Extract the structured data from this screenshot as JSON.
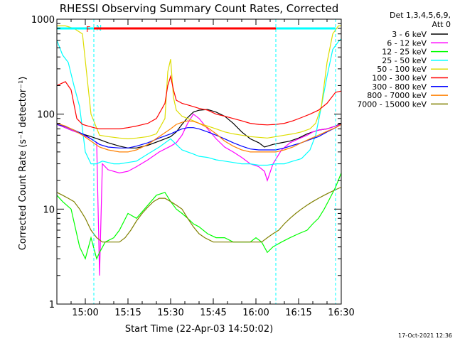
{
  "chart_data": {
    "type": "line",
    "title": "RHESSI Observing Summary Count Rates, Corrected",
    "xlabel": "Start Time (22-Apr-03 14:50:02)",
    "ylabel": "Corrected Count Rate (s⁻¹ detector⁻¹)",
    "x_start_minutes": 0,
    "x_end_minutes": 100,
    "xlim_minutes": [
      0,
      100
    ],
    "ylim": [
      1,
      1000
    ],
    "y_scale": "log",
    "x_ticks": [
      {
        "label": "15:00",
        "minute": 10
      },
      {
        "label": "15:15",
        "minute": 25
      },
      {
        "label": "15:30",
        "minute": 40
      },
      {
        "label": "15:45",
        "minute": 55
      },
      {
        "label": "16:00",
        "minute": 70
      },
      {
        "label": "16:15",
        "minute": 85
      },
      {
        "label": "16:30",
        "minute": 100
      }
    ],
    "y_ticks": [
      {
        "label": "1",
        "value": 1
      },
      {
        "label": "10",
        "value": 10
      },
      {
        "label": "100",
        "value": 100
      },
      {
        "label": "1000",
        "value": 1000
      }
    ],
    "legend_header": [
      "Det 1,3,4,5,6,9,",
      "Att 0"
    ],
    "legend_position": "right",
    "series": [
      {
        "name": "3 - 6 keV",
        "color": "#000000",
        "x": [
          0,
          2,
          5,
          8,
          12,
          15,
          18,
          22,
          25,
          28,
          32,
          36,
          40,
          42,
          44,
          46,
          48,
          50,
          53,
          56,
          59,
          62,
          65,
          68,
          71,
          73,
          76,
          79,
          82,
          85,
          88,
          90,
          92,
          95,
          98,
          100
        ],
        "y": [
          78,
          74,
          68,
          63,
          58,
          54,
          50,
          46,
          44,
          44,
          47,
          52,
          58,
          65,
          78,
          92,
          105,
          110,
          112,
          105,
          95,
          80,
          65,
          55,
          50,
          45,
          48,
          50,
          52,
          56,
          62,
          65,
          68,
          70,
          75,
          80
        ]
      },
      {
        "name": "6 - 12 keV",
        "color": "#ff00ff",
        "x": [
          0,
          2,
          5,
          8,
          12,
          14,
          15,
          16,
          18,
          22,
          25,
          28,
          32,
          36,
          40,
          42,
          44,
          46,
          48,
          50,
          53,
          56,
          59,
          62,
          65,
          68,
          71,
          73,
          74,
          76,
          79,
          82,
          85,
          88,
          90,
          92,
          95,
          98,
          100
        ],
        "y": [
          78,
          74,
          68,
          63,
          55,
          50,
          2,
          30,
          26,
          24,
          25,
          28,
          33,
          40,
          46,
          50,
          60,
          80,
          100,
          90,
          70,
          55,
          45,
          40,
          35,
          30,
          28,
          25,
          20,
          30,
          42,
          50,
          55,
          60,
          65,
          68,
          70,
          75,
          78
        ]
      },
      {
        "name": "12 - 25 keV",
        "color": "#00ff00",
        "x": [
          0,
          2,
          5,
          8,
          10,
          12,
          14,
          15,
          17,
          20,
          22,
          25,
          28,
          32,
          35,
          38,
          40,
          42,
          44,
          46,
          48,
          50,
          53,
          56,
          59,
          62,
          65,
          68,
          70,
          72,
          74,
          76,
          79,
          82,
          85,
          88,
          90,
          92,
          94,
          96,
          98,
          100
        ],
        "y": [
          14,
          12,
          10,
          4,
          3,
          5,
          3,
          3.5,
          4.5,
          5,
          6,
          9,
          8,
          11,
          14,
          15,
          12,
          10,
          9,
          8,
          7,
          6.5,
          5.5,
          5,
          5,
          4.5,
          4.5,
          4.5,
          5,
          4.5,
          3.5,
          4,
          4.5,
          5,
          5.5,
          6,
          7,
          8,
          10,
          13,
          17,
          24
        ]
      },
      {
        "name": "25 - 50 keV",
        "color": "#00ffff",
        "x": [
          0,
          2,
          4,
          6,
          8,
          10,
          12,
          14,
          16,
          18,
          20,
          22,
          25,
          28,
          32,
          36,
          40,
          42,
          44,
          46,
          48,
          50,
          53,
          56,
          59,
          62,
          65,
          68,
          71,
          74,
          77,
          80,
          83,
          86,
          89,
          91,
          93,
          95,
          97,
          99,
          100
        ],
        "y": [
          600,
          420,
          350,
          200,
          120,
          40,
          30,
          30,
          32,
          31,
          30,
          30,
          31,
          32,
          38,
          45,
          55,
          48,
          42,
          40,
          38,
          36,
          35,
          33,
          32,
          31,
          30,
          30,
          29,
          29,
          30,
          30,
          32,
          34,
          42,
          60,
          120,
          250,
          480,
          580,
          620
        ]
      },
      {
        "name": "50 - 100 keV",
        "color": "#dddd00",
        "x": [
          0,
          3,
          6,
          9,
          12,
          15,
          18,
          22,
          25,
          28,
          32,
          35,
          38,
          39,
          40,
          41,
          42,
          44,
          46,
          48,
          50,
          53,
          56,
          59,
          62,
          65,
          68,
          71,
          74,
          77,
          80,
          83,
          86,
          89,
          91,
          93,
          95,
          97,
          99,
          100
        ],
        "y": [
          850,
          850,
          800,
          700,
          100,
          60,
          58,
          56,
          55,
          56,
          58,
          62,
          90,
          280,
          380,
          150,
          110,
          95,
          90,
          85,
          80,
          75,
          70,
          65,
          62,
          60,
          58,
          57,
          56,
          58,
          60,
          62,
          65,
          70,
          80,
          120,
          350,
          700,
          850,
          850
        ]
      },
      {
        "name": "100 - 300 keV",
        "color": "#ff0000",
        "x": [
          0,
          3,
          5,
          7,
          9,
          11,
          13,
          15,
          18,
          22,
          25,
          28,
          32,
          35,
          38,
          39,
          40,
          41,
          42,
          44,
          46,
          48,
          50,
          53,
          56,
          59,
          62,
          65,
          68,
          71,
          74,
          77,
          80,
          83,
          86,
          89,
          92,
          95,
          98,
          100
        ],
        "y": [
          200,
          220,
          180,
          90,
          78,
          75,
          72,
          70,
          70,
          70,
          72,
          75,
          80,
          90,
          130,
          200,
          250,
          180,
          140,
          130,
          125,
          120,
          115,
          110,
          100,
          95,
          90,
          85,
          80,
          78,
          77,
          78,
          80,
          85,
          92,
          100,
          110,
          130,
          170,
          175
        ]
      },
      {
        "name": "300 - 800 keV",
        "color": "#0000ff",
        "x": [
          0,
          3,
          6,
          9,
          12,
          15,
          18,
          22,
          25,
          28,
          32,
          36,
          40,
          42,
          44,
          46,
          48,
          50,
          53,
          56,
          59,
          62,
          65,
          68,
          71,
          74,
          77,
          80,
          83,
          86,
          89,
          92,
          95,
          98,
          100
        ],
        "y": [
          78,
          74,
          68,
          62,
          55,
          48,
          45,
          44,
          44,
          46,
          50,
          56,
          62,
          66,
          70,
          72,
          72,
          70,
          65,
          60,
          55,
          50,
          46,
          43,
          42,
          42,
          42,
          44,
          47,
          50,
          54,
          58,
          65,
          72,
          78
        ]
      },
      {
        "name": "800 - 7000 keV",
        "color": "#ff8000",
        "x": [
          0,
          3,
          6,
          9,
          12,
          15,
          18,
          22,
          25,
          28,
          32,
          36,
          40,
          42,
          44,
          46,
          48,
          50,
          53,
          56,
          59,
          62,
          65,
          68,
          71,
          74,
          77,
          80,
          83,
          86,
          89,
          92,
          95,
          98,
          100
        ],
        "y": [
          80,
          75,
          68,
          60,
          52,
          45,
          42,
          40,
          40,
          42,
          48,
          58,
          70,
          78,
          82,
          85,
          84,
          80,
          72,
          62,
          52,
          46,
          42,
          40,
          40,
          40,
          40,
          42,
          45,
          50,
          55,
          60,
          66,
          72,
          78
        ]
      },
      {
        "name": "7000 - 15000 keV",
        "color": "#808000",
        "x": [
          0,
          2,
          4,
          6,
          8,
          10,
          12,
          14,
          16,
          18,
          20,
          22,
          24,
          26,
          28,
          30,
          32,
          34,
          36,
          38,
          40,
          42,
          44,
          46,
          48,
          50,
          52,
          55,
          58,
          61,
          64,
          67,
          70,
          72,
          74,
          76,
          78,
          80,
          82,
          84,
          86,
          88,
          90,
          92,
          94,
          96,
          98,
          100
        ],
        "y": [
          15,
          14,
          13,
          12,
          10,
          8,
          6,
          5,
          4.5,
          4.5,
          4.5,
          4.5,
          5,
          6,
          7.5,
          9,
          10.5,
          12,
          13,
          13,
          12,
          11,
          10,
          8,
          6.5,
          5.5,
          5,
          4.5,
          4.5,
          4.5,
          4.5,
          4.5,
          4.5,
          4.5,
          5,
          5.5,
          6,
          7,
          8,
          9,
          10,
          11,
          12,
          13,
          14,
          15,
          16,
          17
        ]
      }
    ],
    "attenuator_bar": {
      "label": "F",
      "color": "#ff0000",
      "value": 800,
      "x_range_minutes": [
        13,
        77
      ]
    },
    "night_markers": {
      "label": "N",
      "color": "#00ffff",
      "lines_minutes": [
        13,
        77,
        98
      ],
      "bars": [
        [
          0,
          13
        ],
        [
          77,
          98
        ]
      ]
    },
    "footer_timestamp": "17-Oct-2021 12:36"
  }
}
